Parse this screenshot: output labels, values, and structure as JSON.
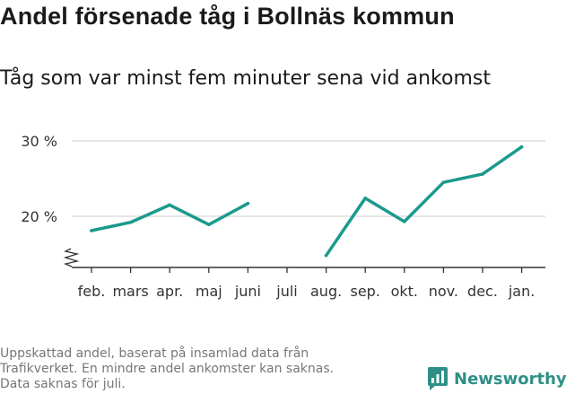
{
  "title": "Andel försenade tåg i Bollnäs kommun",
  "subtitle": "Tåg som var minst fem minuter sena vid ankomst",
  "footnote": [
    "Uppskattad andel, baserat på insamlad data från",
    "Trafikverket. En mindre andel ankomster kan saknas.",
    "Data saknas för juli."
  ],
  "brand": "Newsworthy",
  "colors": {
    "line": "#1a9a8c",
    "grid": "#dddddd",
    "axis": "#333333",
    "brand": "#2f8f86"
  },
  "chart_data": {
    "type": "line",
    "categories": [
      "feb.",
      "mars",
      "apr.",
      "maj",
      "juni",
      "juli",
      "aug.",
      "sep.",
      "okt.",
      "nov.",
      "dec.",
      "jan."
    ],
    "series": [
      {
        "values": [
          18.1,
          19.2,
          21.5,
          18.9,
          21.7,
          null,
          14.8,
          22.4,
          19.3,
          24.5,
          25.6,
          29.2
        ]
      }
    ],
    "ylim": [
      13.2,
      31
    ],
    "yticks": [
      20,
      30
    ],
    "ytick_labels": [
      "20 %",
      "30 %"
    ],
    "y_axis_break": true,
    "grid": "horizontal",
    "legend": "none"
  }
}
